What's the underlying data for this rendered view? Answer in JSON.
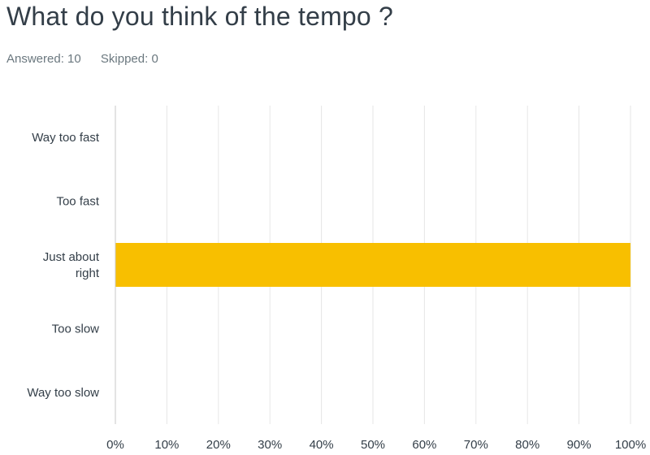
{
  "question": {
    "title": "What do you think of the tempo ?",
    "answered_text": "Answered: 10",
    "skipped_text": "Skipped: 0"
  },
  "colors": {
    "bar": "#f8bf00",
    "grid": "#e6e6e6",
    "axis": "#c8c8c8",
    "text": "#333e48",
    "muted": "#6b787f"
  },
  "chart_data": {
    "type": "bar",
    "orientation": "horizontal",
    "categories": [
      "Way too fast",
      "Too fast",
      "Just about right",
      "Too slow",
      "Way too slow"
    ],
    "values": [
      0,
      0,
      100,
      0,
      0
    ],
    "unit": "%",
    "xlim": [
      0,
      100
    ],
    "xticks": [
      "0%",
      "10%",
      "20%",
      "30%",
      "40%",
      "50%",
      "60%",
      "70%",
      "80%",
      "90%",
      "100%"
    ],
    "grid": true,
    "legend": "none"
  }
}
